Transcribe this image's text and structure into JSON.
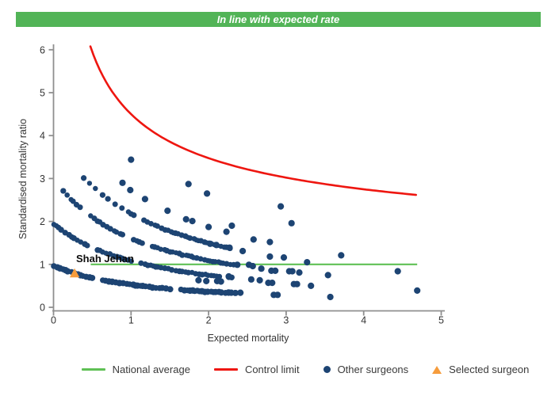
{
  "banner": {
    "text": "In line with expected rate",
    "color": "#52b457",
    "text_color": "#ffffff"
  },
  "chart_data": {
    "type": "scatter",
    "subtype": "funnel-plot",
    "xlabel": "Expected mortality",
    "ylabel": "Standardised mortality ratio",
    "xlim": [
      0,
      5
    ],
    "ylim": [
      0,
      6
    ],
    "x_ticks": [
      0,
      1,
      2,
      3,
      4,
      5
    ],
    "y_ticks": [
      0,
      1,
      2,
      3,
      4,
      5,
      6
    ],
    "grid": false,
    "national_average": {
      "y": 1.0,
      "x_start": 0.48,
      "x_end": 4.69
    },
    "control_limit": {
      "model": "y = 1 + 3.5/sqrt(x)",
      "intercept": 1.0,
      "coef": 3.5,
      "x_start": 0.475,
      "x_end": 4.7
    },
    "surgeon_bands": [
      {
        "id": "band-a",
        "a": 4.76,
        "c": 1.185,
        "x_start": 0.39,
        "x_end": 2.32,
        "sparse_until": 0.95,
        "sparse_mult": 1.7,
        "radius": 3.4,
        "seed": 11,
        "step_min": 0.025,
        "step_rand": 0.03,
        "gap_chance": 0.08,
        "gap_step": 0.09
      },
      {
        "id": "band-b",
        "a": 3.42,
        "c": 1.13,
        "x_start": 0.126,
        "x_end": 2.35,
        "sparse_until": 0,
        "sparse_mult": 1,
        "radius": 3.4,
        "seed": 23,
        "step_min": 0.025,
        "step_rand": 0.03,
        "gap_chance": 0.08,
        "gap_step": 0.09
      },
      {
        "id": "band-c",
        "a": 2.435,
        "c": 1.25,
        "x_start": 0.005,
        "x_end": 2.3,
        "sparse_until": 0,
        "sparse_mult": 1,
        "radius": 3.5,
        "seed": 37,
        "step_min": 0.025,
        "step_rand": 0.03,
        "gap_chance": 0.1,
        "gap_step": 0.09
      },
      {
        "id": "band-d",
        "a": 1.15,
        "c": 1.18,
        "x_start": 0.005,
        "x_end": 2.35,
        "sparse_until": 0,
        "sparse_mult": 1,
        "radius": 3.9,
        "seed": 51,
        "step_min": 0.025,
        "step_rand": 0.03,
        "gap_chance": 0.06,
        "gap_step": 0.09
      }
    ],
    "other_surgeons": [
      [
        1.0,
        3.44
      ],
      [
        0.89,
        2.9
      ],
      [
        0.99,
        2.73
      ],
      [
        1.18,
        2.52
      ],
      [
        1.47,
        2.25
      ],
      [
        1.74,
        2.87
      ],
      [
        1.98,
        2.65
      ],
      [
        1.71,
        2.05
      ],
      [
        1.79,
        2.01
      ],
      [
        2.0,
        1.87
      ],
      [
        2.3,
        1.9
      ],
      [
        2.23,
        1.76
      ],
      [
        2.93,
        2.35
      ],
      [
        3.07,
        1.96
      ],
      [
        2.58,
        1.58
      ],
      [
        2.79,
        1.52
      ],
      [
        2.44,
        1.31
      ],
      [
        2.27,
        1.39
      ],
      [
        2.02,
        1.48
      ],
      [
        2.1,
        1.45
      ],
      [
        2.79,
        1.18
      ],
      [
        2.97,
        1.16
      ],
      [
        3.71,
        1.21
      ],
      [
        3.27,
        1.05
      ],
      [
        2.37,
        0.99
      ],
      [
        2.52,
        0.99
      ],
      [
        2.57,
        0.96
      ],
      [
        2.68,
        0.9
      ],
      [
        2.81,
        0.85
      ],
      [
        2.86,
        0.85
      ],
      [
        3.04,
        0.84
      ],
      [
        3.08,
        0.84
      ],
      [
        3.17,
        0.81
      ],
      [
        4.44,
        0.84
      ],
      [
        3.54,
        0.75
      ],
      [
        2.26,
        0.72
      ],
      [
        1.87,
        0.63
      ],
      [
        1.97,
        0.61
      ],
      [
        2.11,
        0.61
      ],
      [
        2.16,
        0.6
      ],
      [
        2.55,
        0.65
      ],
      [
        2.66,
        0.63
      ],
      [
        2.77,
        0.57
      ],
      [
        2.82,
        0.57
      ],
      [
        3.1,
        0.54
      ],
      [
        3.14,
        0.54
      ],
      [
        3.32,
        0.5
      ],
      [
        2.41,
        0.34
      ],
      [
        2.84,
        0.29
      ],
      [
        2.89,
        0.29
      ],
      [
        3.57,
        0.24
      ],
      [
        4.69,
        0.39
      ]
    ],
    "selected_surgeon": {
      "label": "Shah Jehan",
      "x": 0.272,
      "y": 0.78
    },
    "colors": {
      "dots": "#1d4473",
      "control_limit": "#ee1610",
      "national_average": "#5fc055",
      "selected": "#f69c3c",
      "axis": "#8f8f8f",
      "text": "#333333"
    }
  },
  "legend": {
    "items": [
      {
        "label": "National average",
        "marker": "line",
        "color": "#5fc055"
      },
      {
        "label": "Control limit",
        "marker": "line",
        "color": "#ee1610"
      },
      {
        "label": "Other surgeons",
        "marker": "dot",
        "color": "#1d4473"
      },
      {
        "label": "Selected surgeon",
        "marker": "triangle",
        "color": "#f69c3c"
      }
    ]
  }
}
